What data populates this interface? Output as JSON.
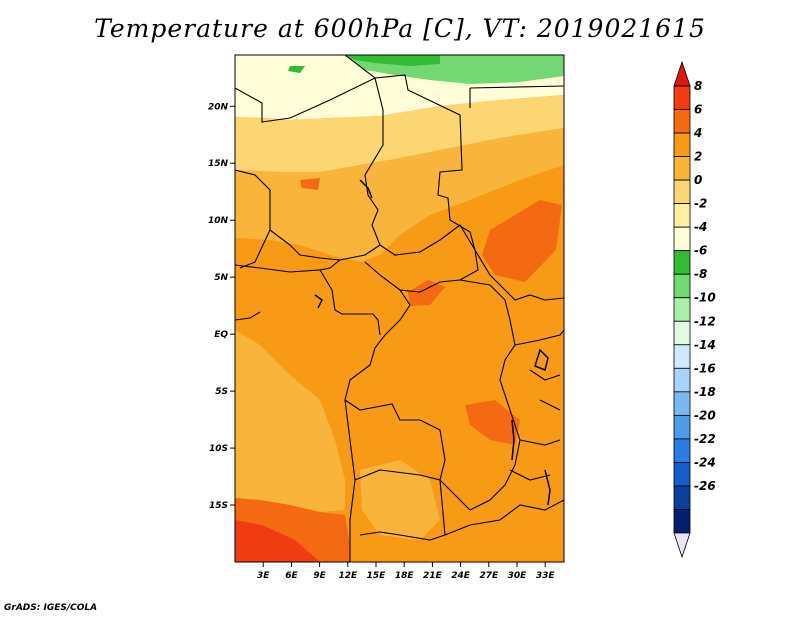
{
  "title": "Temperature at 600hPa [C], VT: 2019021615",
  "credit": "GrADS: IGES/COLA",
  "map": {
    "lat_labels": [
      "20N",
      "15N",
      "10N",
      "5N",
      "EQ",
      "5S",
      "10S",
      "15S"
    ],
    "lon_labels": [
      "3E",
      "6E",
      "9E",
      "12E",
      "15E",
      "18E",
      "21E",
      "24E",
      "27E",
      "30E",
      "33E"
    ],
    "lat_range": [
      -20,
      24.5
    ],
    "lon_range": [
      0,
      35
    ]
  },
  "colorbar": {
    "labels": [
      "8",
      "6",
      "4",
      "2",
      "0",
      "-2",
      "-4",
      "-6",
      "-8",
      "-10",
      "-12",
      "-14",
      "-16",
      "-18",
      "-20",
      "-22",
      "-24",
      "-26"
    ],
    "colors": [
      "#d91a10",
      "#f03c10",
      "#f46a12",
      "#f79a16",
      "#f9b43c",
      "#fbd673",
      "#fdeea6",
      "#fefdd8",
      "#33bb33",
      "#73d873",
      "#aaeeaa",
      "#e2fae2",
      "#cfe9ff",
      "#a8d4fb",
      "#7ab8f2",
      "#4f9bea",
      "#2a7ce0",
      "#155ec8",
      "#0b3f9e",
      "#061e6e",
      "#e8e6f7"
    ]
  }
}
